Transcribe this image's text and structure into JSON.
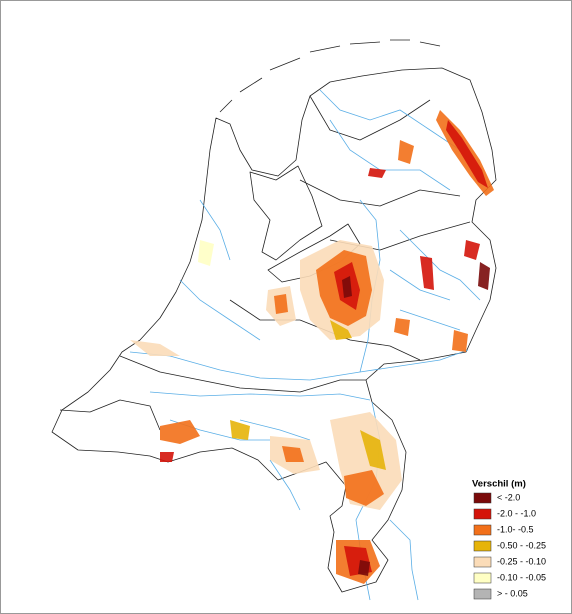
{
  "legend": {
    "title": "Verschil (m)",
    "items": [
      {
        "label": "< -2.0",
        "color": "#7a0a0a"
      },
      {
        "label": "-2.0 - -1.0",
        "color": "#d4140a"
      },
      {
        "label": "-1.0- -0.5",
        "color": "#f2701a"
      },
      {
        "label": "-0.50 - -0.25",
        "color": "#e6b40a"
      },
      {
        "label": "-0.25 - -0.10",
        "color": "#fbdcb8"
      },
      {
        "label": "-0.10 - -0.05",
        "color": "#ffffc4"
      },
      {
        "label": "> - 0.05",
        "color": "#b4b4b4"
      }
    ]
  }
}
